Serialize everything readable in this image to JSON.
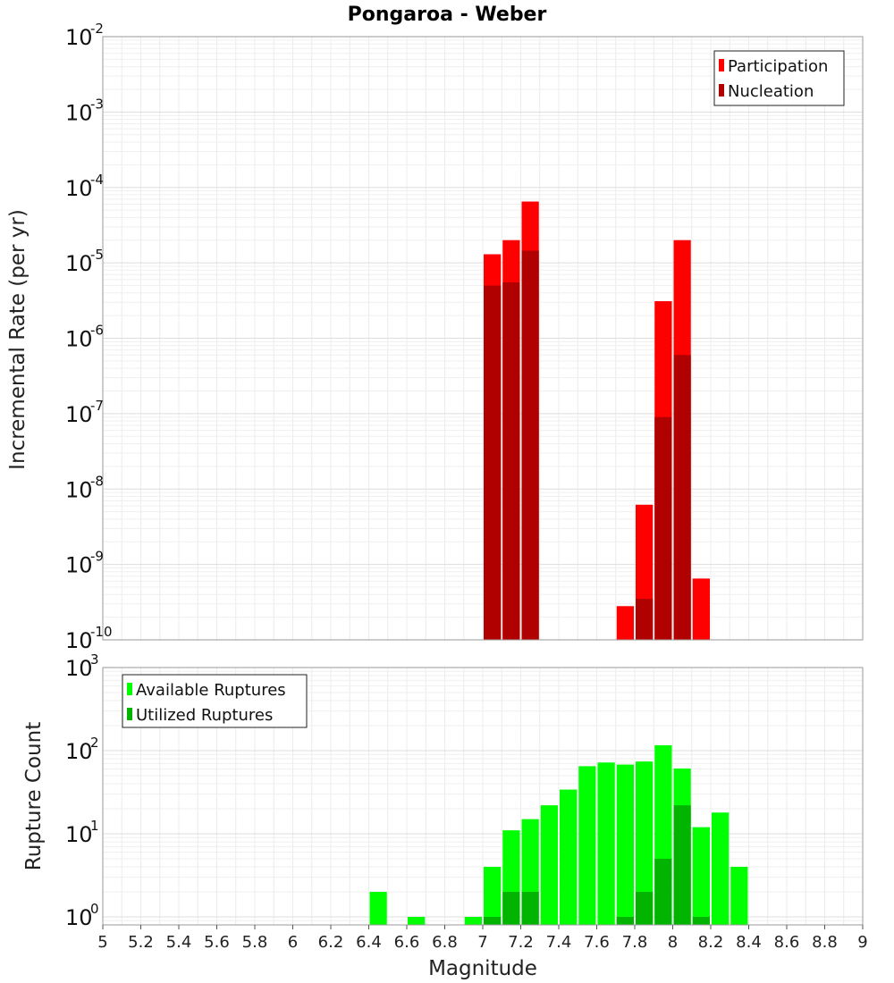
{
  "title": "Pongaroa - Weber",
  "chart_data": [
    {
      "type": "bar",
      "name": "rate_panel",
      "ylabel": "Incremental Rate (per yr)",
      "yscale": "log",
      "ylim": [
        1e-10,
        0.01
      ],
      "yticks": [
        {
          "base": "10",
          "exp": "-10"
        },
        {
          "base": "10",
          "exp": "-9"
        },
        {
          "base": "10",
          "exp": "-8"
        },
        {
          "base": "10",
          "exp": "-7"
        },
        {
          "base": "10",
          "exp": "-6"
        },
        {
          "base": "10",
          "exp": "-5"
        },
        {
          "base": "10",
          "exp": "-4"
        },
        {
          "base": "10",
          "exp": "-3"
        },
        {
          "base": "10",
          "exp": "-2"
        }
      ],
      "xlim": [
        5,
        9
      ],
      "bin_width": 0.1,
      "grid": true,
      "legend_position": "top-right",
      "series": [
        {
          "name": "Participation",
          "color": "#ff0000",
          "x": [
            7.05,
            7.15,
            7.25,
            7.75,
            7.85,
            7.95,
            8.05,
            8.15
          ],
          "values": [
            1.3e-05,
            2e-05,
            6.5e-05,
            2.8e-10,
            6.2e-09,
            3.1e-06,
            2e-05,
            6.5e-10
          ]
        },
        {
          "name": "Nucleation",
          "color": "#b00000",
          "x": [
            7.05,
            7.15,
            7.25,
            7.85,
            7.95,
            8.05
          ],
          "values": [
            5e-06,
            5.5e-06,
            1.45e-05,
            3.5e-10,
            9e-08,
            6e-07
          ]
        }
      ]
    },
    {
      "type": "bar",
      "name": "count_panel",
      "xlabel": "Magnitude",
      "ylabel": "Rupture Count",
      "yscale": "log",
      "ylim": [
        0.8,
        1000
      ],
      "yticks": [
        {
          "base": "10",
          "exp": "0"
        },
        {
          "base": "10",
          "exp": "1"
        },
        {
          "base": "10",
          "exp": "2"
        },
        {
          "base": "10",
          "exp": "3"
        }
      ],
      "xlim": [
        5,
        9
      ],
      "xticks": [
        "5",
        "5.2",
        "5.4",
        "5.6",
        "5.8",
        "6",
        "6.2",
        "6.4",
        "6.6",
        "6.8",
        "7",
        "7.2",
        "7.4",
        "7.6",
        "7.8",
        "8",
        "8.2",
        "8.4",
        "8.6",
        "8.8",
        "9"
      ],
      "bin_width": 0.1,
      "grid": true,
      "legend_position": "top-left",
      "series": [
        {
          "name": "Available Ruptures",
          "color": "#00ff00",
          "x": [
            6.45,
            6.65,
            6.95,
            7.05,
            7.15,
            7.25,
            7.35,
            7.45,
            7.55,
            7.65,
            7.75,
            7.85,
            7.95,
            8.05,
            8.15,
            8.25,
            8.35
          ],
          "values": [
            2,
            1,
            1,
            4,
            11,
            15,
            22,
            34,
            65,
            72,
            68,
            74,
            116,
            61,
            12,
            18,
            4
          ]
        },
        {
          "name": "Utilized Ruptures",
          "color": "#00b400",
          "x": [
            7.05,
            7.15,
            7.25,
            7.75,
            7.85,
            7.95,
            8.05,
            8.15
          ],
          "values": [
            1,
            2,
            2,
            1,
            2,
            5,
            22,
            1
          ]
        }
      ]
    }
  ]
}
